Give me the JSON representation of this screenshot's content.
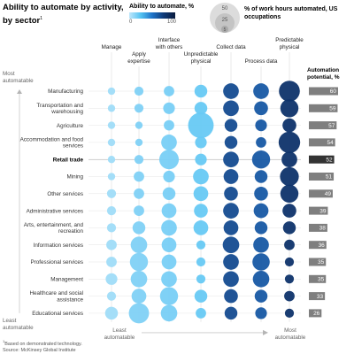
{
  "title": "Ability to automate by activity, by sector",
  "title_sup": "1",
  "legend": {
    "color_title": "Ability to automate, %",
    "color_min": "0",
    "color_max": "100",
    "size_values": [
      "50",
      "25",
      "5"
    ],
    "size_label": "% of work hours automated, US occupations"
  },
  "side_axis": {
    "top": "Most automatable",
    "bottom": "Least automatable"
  },
  "bottom_axis": {
    "left": "Least automatable",
    "right": "Most automatable"
  },
  "potential_header": "Automation potential, %",
  "footnote": "Based on demonstrated technology.",
  "footnote_sup": "1",
  "source": "Source: McKinsey Global Institute",
  "colors": {
    "bar": "#7f7f7f",
    "bar_highlight": "#333333",
    "ink": "#0a1b3d",
    "light": "#bfe7fb"
  },
  "highlight_sector": "Retail trade",
  "chart_data": {
    "type": "bubble-matrix",
    "activities": [
      "Manage",
      "Apply expertise",
      "Interface with others",
      "Unpredictable physical",
      "Collect data",
      "Process data",
      "Predictable physical"
    ],
    "sectors": [
      "Manufacturing",
      "Transportation and warehousing",
      "Agriculture",
      "Accommodation and food services",
      "Retail trade",
      "Mining",
      "Other services",
      "Administrative services",
      "Arts, entertainment, and recreation",
      "Information services",
      "Professional services",
      "Management",
      "Healthcare and social assistance",
      "Educational services"
    ],
    "automation_potential": [
      60,
      59,
      57,
      54,
      52,
      51,
      49,
      39,
      38,
      36,
      35,
      35,
      33,
      26
    ],
    "hours_share": [
      [
        2,
        3,
        4,
        6,
        9,
        9,
        16
      ],
      [
        2,
        3,
        5,
        6,
        9,
        7,
        12
      ],
      [
        2,
        2,
        4,
        24,
        6,
        5,
        7
      ],
      [
        2,
        2,
        9,
        5,
        6,
        4,
        17
      ],
      [
        2,
        3,
        14,
        5,
        9,
        12,
        9
      ],
      [
        2,
        4,
        5,
        9,
        8,
        6,
        13
      ],
      [
        3,
        4,
        6,
        8,
        7,
        7,
        12
      ],
      [
        3,
        4,
        8,
        7,
        9,
        8,
        7
      ],
      [
        3,
        6,
        9,
        8,
        8,
        6,
        6
      ],
      [
        4,
        10,
        8,
        3,
        10,
        9,
        4
      ],
      [
        4,
        12,
        8,
        3,
        9,
        11,
        3
      ],
      [
        5,
        10,
        9,
        3,
        9,
        10,
        3
      ],
      [
        3,
        8,
        12,
        6,
        7,
        6,
        4
      ],
      [
        6,
        15,
        10,
        4,
        6,
        5,
        3
      ]
    ],
    "ability_to_automate": [
      9,
      18,
      20,
      25,
      69,
      64,
      81
    ]
  }
}
